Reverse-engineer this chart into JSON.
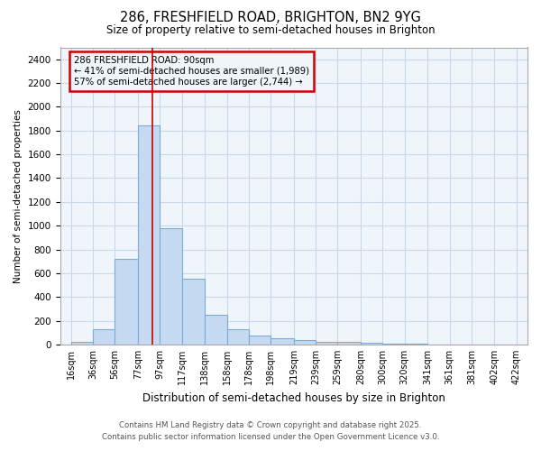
{
  "title": "286, FRESHFIELD ROAD, BRIGHTON, BN2 9YG",
  "subtitle": "Size of property relative to semi-detached houses in Brighton",
  "xlabel": "Distribution of semi-detached houses by size in Brighton",
  "ylabel": "Number of semi-detached properties",
  "footnote1": "Contains HM Land Registry data © Crown copyright and database right 2025.",
  "footnote2": "Contains public sector information licensed under the Open Government Licence v3.0.",
  "annotation_title": "286 FRESHFIELD ROAD: 90sqm",
  "annotation_line1": "← 41% of semi-detached houses are smaller (1,989)",
  "annotation_line2": "57% of semi-detached houses are larger (2,744) →",
  "bar_left_edges": [
    16,
    36,
    56,
    77,
    97,
    117,
    138,
    158,
    178,
    198,
    219,
    239,
    259,
    280,
    300,
    320,
    341,
    361,
    381,
    402
  ],
  "bar_widths": [
    20,
    20,
    21,
    20,
    20,
    21,
    20,
    20,
    20,
    21,
    20,
    20,
    21,
    20,
    20,
    21,
    20,
    20,
    21,
    20
  ],
  "bar_heights": [
    20,
    130,
    720,
    1840,
    980,
    550,
    250,
    130,
    75,
    55,
    35,
    25,
    20,
    15,
    10,
    5,
    2,
    2,
    1,
    1
  ],
  "bar_color": "#c5d9f0",
  "bar_edge_color": "#7badd4",
  "bar_edge_width": 0.8,
  "grid_color": "#c8d8ea",
  "background_color": "#ffffff",
  "plot_bg_color": "#f0f5fc",
  "red_line_x": 90,
  "red_line_color": "#cc0000",
  "annotation_box_color": "#cc0000",
  "ylim": [
    0,
    2500
  ],
  "yticks": [
    0,
    200,
    400,
    600,
    800,
    1000,
    1200,
    1400,
    1600,
    1800,
    2000,
    2200,
    2400
  ],
  "xtick_labels": [
    "16sqm",
    "36sqm",
    "56sqm",
    "77sqm",
    "97sqm",
    "117sqm",
    "138sqm",
    "158sqm",
    "178sqm",
    "198sqm",
    "219sqm",
    "239sqm",
    "259sqm",
    "280sqm",
    "300sqm",
    "320sqm",
    "341sqm",
    "361sqm",
    "381sqm",
    "402sqm",
    "422sqm"
  ],
  "xtick_positions": [
    16,
    36,
    56,
    77,
    97,
    117,
    138,
    158,
    178,
    198,
    219,
    239,
    259,
    280,
    300,
    320,
    341,
    361,
    381,
    402,
    422
  ],
  "xlim": [
    6,
    432
  ]
}
